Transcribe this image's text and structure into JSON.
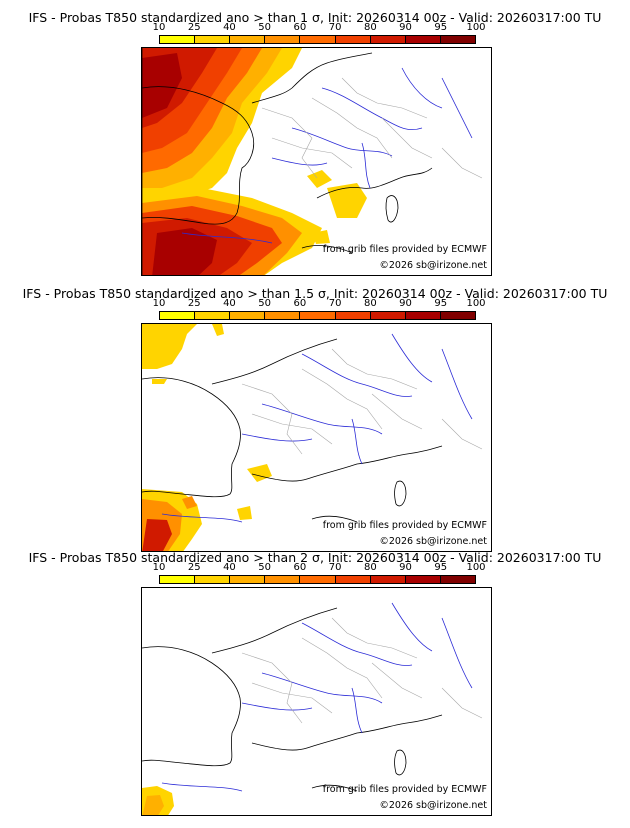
{
  "panels": [
    {
      "title": "IFS - Probas T850  standardized ano > than 1 σ, Init: 20260314 00z - Valid: 20260317:00 TU",
      "credit_source": "from grib files provided by ECMWF",
      "credit_copyright": "©2026 sb@irizone.net"
    },
    {
      "title": "IFS - Probas T850  standardized ano > than 1.5 σ, Init: 20260314 00z - Valid: 20260317:00 TU",
      "credit_source": "from grib files provided by ECMWF",
      "credit_copyright": "©2026 sb@irizone.net"
    },
    {
      "title": "IFS - Probas T850  standardized ano > than 2 σ, Init: 20260314 00z - Valid: 20260317:00 TU",
      "credit_source": "from grib files provided by ECMWF",
      "credit_copyright": "©2026 sb@irizone.net"
    }
  ],
  "colorbar": {
    "ticks": [
      "10",
      "25",
      "40",
      "50",
      "60",
      "70",
      "80",
      "90",
      "95",
      "100"
    ],
    "colors": [
      "#ffff00",
      "#ffd400",
      "#ffb000",
      "#ff9000",
      "#ff6a00",
      "#f04000",
      "#d01a00",
      "#a80000",
      "#800000"
    ]
  },
  "map_colors": {
    "coast": "#000000",
    "rivers": "#2b2bd6",
    "borders": "#a8a8a8"
  }
}
